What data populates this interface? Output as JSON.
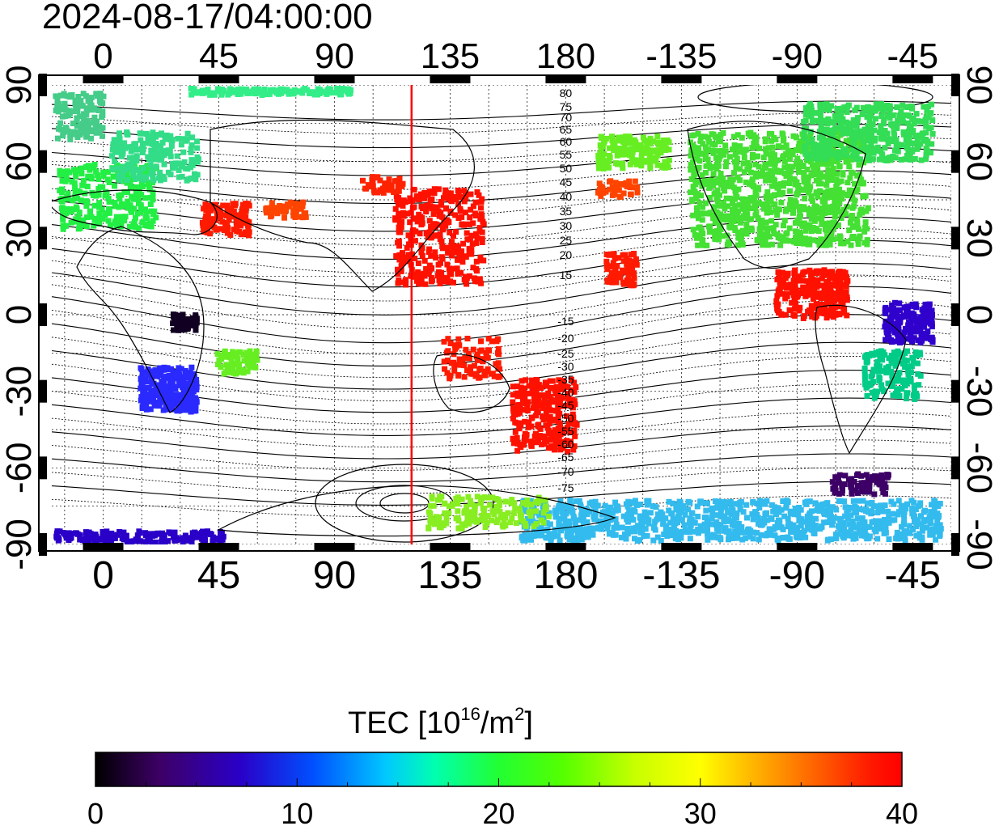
{
  "title": "2024-08-17/04:00:00",
  "map": {
    "lon_ticks_top": [
      "0",
      "45",
      "90",
      "135",
      "180",
      "-135",
      "-90",
      "-45"
    ],
    "lon_ticks_bottom": [
      "0",
      "45",
      "90",
      "135",
      "180",
      "-135",
      "-90",
      "-45"
    ],
    "lat_ticks_left": [
      "90",
      "60",
      "30",
      "0",
      "-30",
      "-60",
      "-90"
    ],
    "lat_ticks_right": [
      "90",
      "60",
      "30",
      "0",
      "-30",
      "-60",
      "-90"
    ],
    "lon_range": [
      -20,
      330
    ],
    "lat_range": [
      -90,
      90
    ],
    "lon_grid_step": 15,
    "lat_grid_step": 15,
    "marker_longitude": 120,
    "marker_color": "#ff0000",
    "geomag_labels_north": [
      "80",
      "75",
      "70",
      "65",
      "60",
      "55",
      "50",
      "45",
      "40",
      "35",
      "30",
      "25",
      "20",
      "15"
    ],
    "geomag_labels_south": [
      "-15",
      "-20",
      "-25",
      "-30",
      "-35",
      "-40",
      "-45",
      "-50",
      "-55",
      "-60",
      "-65",
      "-70",
      "-75"
    ]
  },
  "colorbar": {
    "title": "TEC  [10",
    "title_sup": "16",
    "title_mid": "/m",
    "title_sup2": "2",
    "title_end": "]",
    "ticks": [
      "0",
      "10",
      "20",
      "30",
      "40"
    ],
    "min": 0,
    "max": 40,
    "colors": [
      "#000000",
      "#3d0066",
      "#2a00c8",
      "#0050ff",
      "#00c8ff",
      "#00ffb0",
      "#22ff33",
      "#55ff00",
      "#c8ff00",
      "#ffff00",
      "#ffb000",
      "#ff5a00",
      "#ff1a00",
      "#ff0000"
    ]
  }
}
